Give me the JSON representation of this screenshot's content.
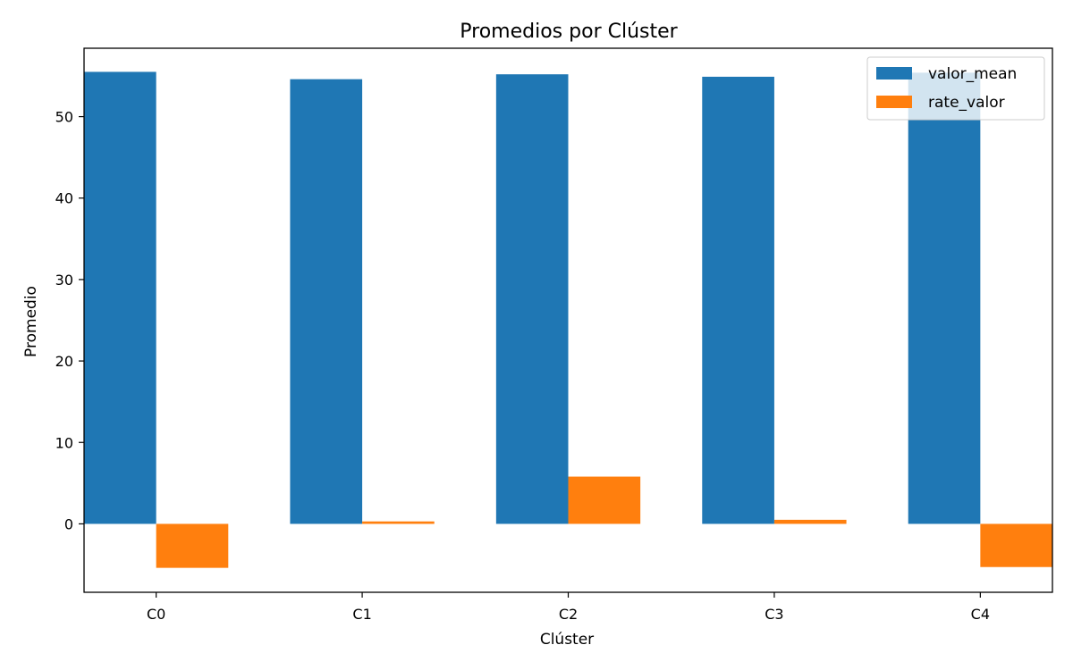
{
  "chart_data": {
    "type": "bar",
    "title": "Promedios por Clúster",
    "xlabel": "Clúster",
    "ylabel": "Promedio",
    "categories": [
      "C0",
      "C1",
      "C2",
      "C3",
      "C4"
    ],
    "series": [
      {
        "name": "valor_mean",
        "color": "#1f77b4",
        "values": [
          55.5,
          54.6,
          55.2,
          54.9,
          55.4
        ]
      },
      {
        "name": "rate_valor",
        "color": "#ff7f0e",
        "values": [
          -5.4,
          0.3,
          5.8,
          0.5,
          -5.3
        ]
      }
    ],
    "ylim": [
      -8.4,
      58.4
    ],
    "yticks": [
      0,
      10,
      20,
      30,
      40,
      50
    ],
    "grid": false,
    "legend": "top-right"
  }
}
